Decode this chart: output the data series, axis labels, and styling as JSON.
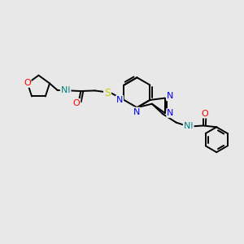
{
  "background_color": "#e8e8e8",
  "figure_size": [
    3.0,
    3.0
  ],
  "dpi": 100,
  "atom_colors": {
    "N": "#0000ee",
    "O": "#ff0000",
    "S": "#cccc00",
    "NH": "#008080",
    "C": "#000000"
  },
  "bond_color": "#000000",
  "bond_width": 1.4,
  "font_size": 7.5
}
